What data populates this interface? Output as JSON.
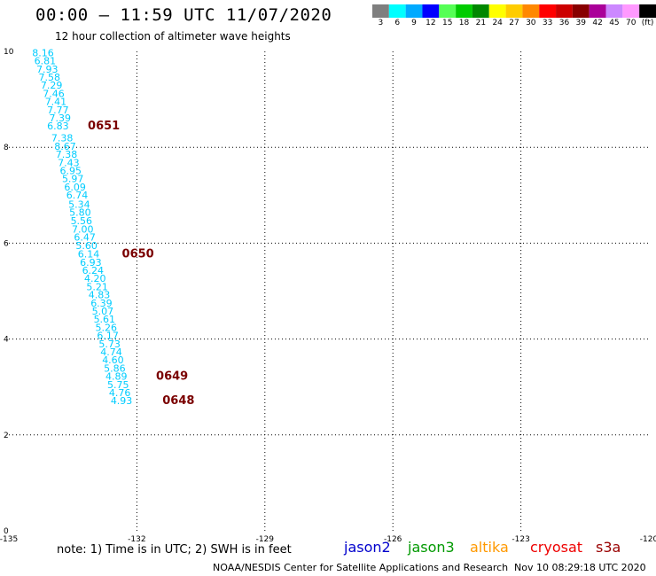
{
  "header": {
    "title": "00:00 — 11:59 UTC 11/07/2020",
    "subtitle": "12 hour collection of altimeter wave heights"
  },
  "colorbar": {
    "colors": [
      "#7f7f7f",
      "#00ffff",
      "#00aaff",
      "#0000ff",
      "#55ff55",
      "#00cc00",
      "#008800",
      "#ffff00",
      "#ffcc00",
      "#ff8800",
      "#ff0000",
      "#cc0000",
      "#880000",
      "#aa0099",
      "#cc88ff",
      "#ff99ff",
      "#000000"
    ],
    "labels": [
      "3",
      "6",
      "9",
      "12",
      "15",
      "18",
      "21",
      "24",
      "27",
      "30",
      "33",
      "36",
      "39",
      "42",
      "45",
      "70",
      "(ft)"
    ]
  },
  "chart_data": {
    "type": "scatter",
    "xlim": [
      -135,
      -120
    ],
    "ylim": [
      0,
      10
    ],
    "x_ticks": [
      "-135",
      "-132",
      "-129",
      "-126",
      "-123",
      "-120"
    ],
    "y_ticks": [
      "0",
      "2",
      "4",
      "6",
      "8",
      "10"
    ],
    "grid": true,
    "point_color": "#00ccff",
    "time_color": "#7a0000",
    "points": [
      {
        "x": -134.2,
        "y": 9.9,
        "label": "8.16"
      },
      {
        "x": -134.15,
        "y": 9.73,
        "label": "6.81"
      },
      {
        "x": -134.1,
        "y": 9.56,
        "label": "7.93"
      },
      {
        "x": -134.05,
        "y": 9.39,
        "label": "7.58"
      },
      {
        "x": -134.0,
        "y": 9.22,
        "label": "7.29"
      },
      {
        "x": -133.95,
        "y": 9.05,
        "label": "7.46"
      },
      {
        "x": -133.9,
        "y": 8.88,
        "label": "7.41"
      },
      {
        "x": -133.85,
        "y": 8.71,
        "label": "7.77"
      },
      {
        "x": -133.8,
        "y": 8.54,
        "label": "7.39"
      },
      {
        "x": -133.85,
        "y": 8.37,
        "label": "6.83"
      },
      {
        "x": -133.75,
        "y": 8.12,
        "label": "7.38"
      },
      {
        "x": -133.68,
        "y": 7.95,
        "label": "8.67"
      },
      {
        "x": -133.65,
        "y": 7.78,
        "label": "7.38"
      },
      {
        "x": -133.6,
        "y": 7.61,
        "label": "7.43"
      },
      {
        "x": -133.55,
        "y": 7.44,
        "label": "6.95"
      },
      {
        "x": -133.5,
        "y": 7.27,
        "label": "5.97"
      },
      {
        "x": -133.45,
        "y": 7.1,
        "label": "6.09"
      },
      {
        "x": -133.4,
        "y": 6.93,
        "label": "6.74"
      },
      {
        "x": -133.35,
        "y": 6.74,
        "label": "5.34"
      },
      {
        "x": -133.33,
        "y": 6.57,
        "label": "5.80"
      },
      {
        "x": -133.3,
        "y": 6.4,
        "label": "5.56"
      },
      {
        "x": -133.27,
        "y": 6.22,
        "label": "7.00"
      },
      {
        "x": -133.22,
        "y": 6.05,
        "label": "6.47"
      },
      {
        "x": -133.18,
        "y": 5.88,
        "label": "5.60"
      },
      {
        "x": -133.13,
        "y": 5.7,
        "label": "6.14"
      },
      {
        "x": -133.08,
        "y": 5.53,
        "label": "6.93"
      },
      {
        "x": -133.03,
        "y": 5.36,
        "label": "6.24"
      },
      {
        "x": -132.98,
        "y": 5.19,
        "label": "4.20"
      },
      {
        "x": -132.93,
        "y": 5.02,
        "label": "5.21"
      },
      {
        "x": -132.88,
        "y": 4.85,
        "label": "4.83"
      },
      {
        "x": -132.83,
        "y": 4.68,
        "label": "6.39"
      },
      {
        "x": -132.8,
        "y": 4.51,
        "label": "5.07"
      },
      {
        "x": -132.76,
        "y": 4.34,
        "label": "5.61"
      },
      {
        "x": -132.72,
        "y": 4.17,
        "label": "5.26"
      },
      {
        "x": -132.68,
        "y": 4.0,
        "label": "6.17"
      },
      {
        "x": -132.64,
        "y": 3.83,
        "label": "5.73"
      },
      {
        "x": -132.6,
        "y": 3.66,
        "label": "4.74"
      },
      {
        "x": -132.56,
        "y": 3.49,
        "label": "4.60"
      },
      {
        "x": -132.52,
        "y": 3.32,
        "label": "5.86"
      },
      {
        "x": -132.48,
        "y": 3.15,
        "label": "4.89"
      },
      {
        "x": -132.44,
        "y": 2.98,
        "label": "5.75"
      },
      {
        "x": -132.4,
        "y": 2.81,
        "label": "4.76"
      },
      {
        "x": -132.36,
        "y": 2.64,
        "label": "4.93"
      }
    ],
    "time_labels": [
      {
        "x": -133.15,
        "y": 8.37,
        "text": "0651"
      },
      {
        "x": -132.35,
        "y": 5.7,
        "text": "0650"
      },
      {
        "x": -131.55,
        "y": 3.15,
        "text": "0649"
      },
      {
        "x": -131.4,
        "y": 2.64,
        "text": "0648"
      }
    ]
  },
  "footer": {
    "note": "note: 1) Time is in UTC; 2) SWH is in feet",
    "satellites": [
      {
        "name": "jason2",
        "color": "#0000cc"
      },
      {
        "name": "jason3",
        "color": "#009900"
      },
      {
        "name": "altika",
        "color": "#ff9900"
      },
      {
        "name": "cryosat",
        "color": "#ee0000"
      },
      {
        "name": "s3a",
        "color": "#990000"
      }
    ],
    "credit": "NOAA/NESDIS Center for Satellite Applications and Research",
    "timestamp": "Nov 10 08:29:18 UTC 2020"
  }
}
